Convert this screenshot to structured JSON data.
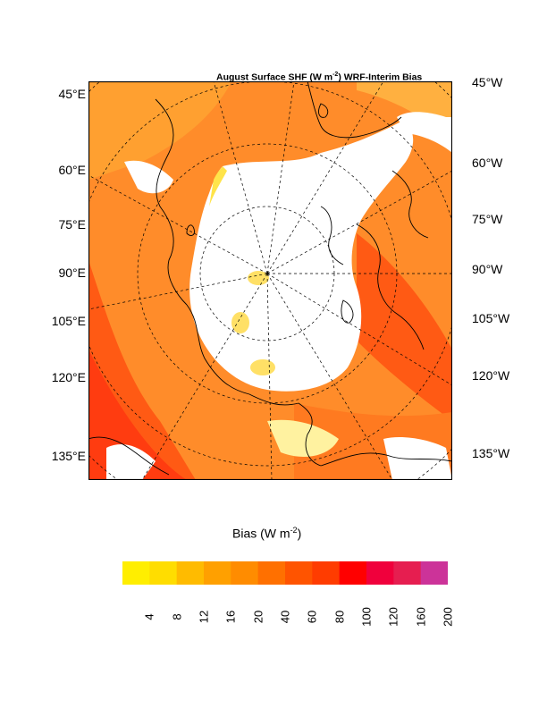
{
  "title": {
    "prefix": "August Surface SHF (W m",
    "sup": "-2",
    "suffix": ") WRF-Interim Bias"
  },
  "left_lat_labels": [
    "45°E",
    "60°E",
    "75°E",
    "90°E",
    "105°E",
    "120°E",
    "135°E"
  ],
  "right_lat_labels": [
    "45°W",
    "60°W",
    "75°W",
    "90°W",
    "105°W",
    "120°W",
    "135°W"
  ],
  "colorbar": {
    "title_prefix": "Bias (W m",
    "title_sup": "-2",
    "title_suffix": ")",
    "ticks": [
      "4",
      "8",
      "12",
      "16",
      "20",
      "40",
      "60",
      "80",
      "100",
      "120",
      "160",
      "200"
    ],
    "colors": [
      "#ffee00",
      "#ffdd00",
      "#ffbb00",
      "#ffa000",
      "#ff8c00",
      "#ff7000",
      "#ff5400",
      "#ff3c00",
      "#ff0000",
      "#f0003c",
      "#e61e50",
      "#cc3399"
    ]
  },
  "colors": {
    "land_ocean_bias": "#ff8c2a",
    "sea_ice_zero": "#ffffff",
    "coastline": "#000000"
  }
}
